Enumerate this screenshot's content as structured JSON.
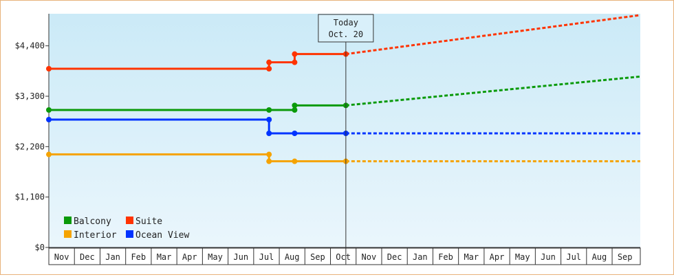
{
  "chart_data": {
    "type": "line",
    "y_ticks": [
      {
        "value": 0,
        "label": "$0"
      },
      {
        "value": 1100,
        "label": "$1,100"
      },
      {
        "value": 2200,
        "label": "$2,200"
      },
      {
        "value": 3300,
        "label": "$3,300"
      },
      {
        "value": 4400,
        "label": "$4,400"
      }
    ],
    "ylim": [
      0,
      5100
    ],
    "x_months": [
      "Nov",
      "Dec",
      "Jan",
      "Feb",
      "Mar",
      "Apr",
      "May",
      "Jun",
      "Jul",
      "Aug",
      "Sep",
      "Oct",
      "Nov",
      "Dec",
      "Jan",
      "Feb",
      "Mar",
      "Apr",
      "May",
      "Jun",
      "Jul",
      "Aug",
      "Sep"
    ],
    "x_range_months": [
      0,
      23.1
    ],
    "today": {
      "line1": "Today",
      "line2": "Oct. 20",
      "month_index": 11.6
    },
    "grid": false,
    "legend_position": "bottom-left",
    "legend": [
      {
        "name": "Balcony",
        "color": "#0a9a0a"
      },
      {
        "name": "Suite",
        "color": "#ff3300"
      },
      {
        "name": "Interior",
        "color": "#f5a300"
      },
      {
        "name": "Ocean View",
        "color": "#0033ff"
      }
    ],
    "series": [
      {
        "name": "Balcony",
        "color": "#0a9a0a",
        "history": [
          [
            0,
            3000
          ],
          [
            8.6,
            3000
          ],
          [
            9.6,
            3000
          ],
          [
            9.6,
            3100
          ],
          [
            11.6,
            3100
          ]
        ],
        "markers": [
          [
            0,
            3000
          ],
          [
            8.6,
            3000
          ],
          [
            9.6,
            3000
          ],
          [
            9.6,
            3100
          ],
          [
            11.6,
            3100
          ]
        ],
        "forecast": [
          [
            11.6,
            3100
          ],
          [
            23.1,
            3730
          ]
        ]
      },
      {
        "name": "Suite",
        "color": "#ff3300",
        "history": [
          [
            0,
            3900
          ],
          [
            8.6,
            3900
          ],
          [
            8.6,
            4040
          ],
          [
            9.6,
            4040
          ],
          [
            9.6,
            4220
          ],
          [
            11.6,
            4220
          ]
        ],
        "markers": [
          [
            0,
            3900
          ],
          [
            8.6,
            3900
          ],
          [
            8.6,
            4040
          ],
          [
            9.6,
            4040
          ],
          [
            9.6,
            4220
          ],
          [
            11.6,
            4220
          ]
        ],
        "forecast": [
          [
            11.6,
            4220
          ],
          [
            23.1,
            5070
          ]
        ]
      },
      {
        "name": "Interior",
        "color": "#f5a300",
        "history": [
          [
            0,
            2030
          ],
          [
            8.6,
            2030
          ],
          [
            8.6,
            1880
          ],
          [
            11.6,
            1880
          ]
        ],
        "markers": [
          [
            0,
            2030
          ],
          [
            8.6,
            2030
          ],
          [
            8.6,
            1880
          ],
          [
            9.6,
            1880
          ],
          [
            11.6,
            1880
          ]
        ],
        "forecast": [
          [
            11.6,
            1880
          ],
          [
            23.1,
            1880
          ]
        ]
      },
      {
        "name": "Ocean View",
        "color": "#0033ff",
        "history": [
          [
            0,
            2790
          ],
          [
            8.6,
            2790
          ],
          [
            8.6,
            2490
          ],
          [
            11.6,
            2490
          ]
        ],
        "markers": [
          [
            0,
            2790
          ],
          [
            8.6,
            2790
          ],
          [
            8.6,
            2490
          ],
          [
            9.6,
            2490
          ],
          [
            11.6,
            2490
          ]
        ],
        "forecast": [
          [
            11.6,
            2490
          ],
          [
            23.1,
            2490
          ]
        ]
      }
    ]
  }
}
